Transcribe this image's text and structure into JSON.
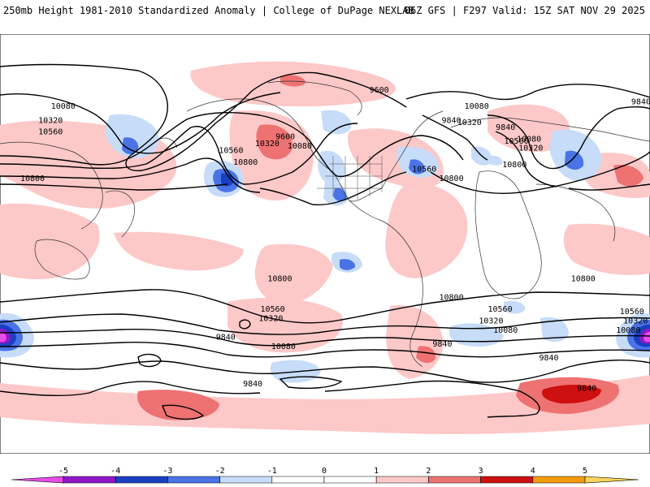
{
  "header": {
    "title": "250mb Height 1981-2010 Standardized Anomaly | College of DuPage NEXLAB",
    "run_info": "06Z GFS | F297 Valid: 15Z SAT NOV 29 2025"
  },
  "legend": {
    "ticks": [
      "-5",
      "-4",
      "-3",
      "-2",
      "-1",
      "0",
      "1",
      "2",
      "3",
      "4",
      "5"
    ],
    "colors": [
      "#e94be9",
      "#8f17c7",
      "#1a3fc2",
      "#4a73e6",
      "#c6dcf8",
      "#ffffff",
      "#ffffff",
      "#fcc8c8",
      "#ee7272",
      "#cd1010",
      "#f59c0c",
      "#f9d45c"
    ]
  },
  "map": {
    "contour_labels": [
      "9600",
      "9840",
      "10080",
      "10320",
      "10560",
      "10800"
    ],
    "label_items": [
      {
        "text": "9600",
        "lat": 66,
        "lon": -150
      },
      {
        "text": "10080",
        "lat": 59,
        "lon": -96
      },
      {
        "text": "9840",
        "lat": 53,
        "lon": -110
      },
      {
        "text": "10320",
        "lat": 52,
        "lon": -100
      },
      {
        "text": "9840",
        "lat": 50,
        "lon": -80
      },
      {
        "text": "9840",
        "lat": 61,
        "lon": -5
      },
      {
        "text": "10080",
        "lat": 59,
        "lon": 35
      },
      {
        "text": "10320",
        "lat": 53,
        "lon": 28
      },
      {
        "text": "10560",
        "lat": 48,
        "lon": 28
      },
      {
        "text": "9600",
        "lat": 46,
        "lon": 158
      },
      {
        "text": "10320",
        "lat": 43,
        "lon": 148
      },
      {
        "text": "10080",
        "lat": 42,
        "lon": 166
      },
      {
        "text": "10560",
        "lat": 40,
        "lon": 128
      },
      {
        "text": "10800",
        "lat": 35,
        "lon": 136
      },
      {
        "text": "10560",
        "lat": 32,
        "lon": -125
      },
      {
        "text": "10800",
        "lat": 28,
        "lon": -110
      },
      {
        "text": "10560",
        "lat": 44,
        "lon": -74
      },
      {
        "text": "10080",
        "lat": 45,
        "lon": -67
      },
      {
        "text": "10320",
        "lat": 41,
        "lon": -66
      },
      {
        "text": "10800",
        "lat": 34,
        "lon": -75
      },
      {
        "text": "10800",
        "lat": 28,
        "lon": 18
      },
      {
        "text": "10800",
        "lat": -15,
        "lon": 155
      },
      {
        "text": "10800",
        "lat": -23,
        "lon": -110
      },
      {
        "text": "10800",
        "lat": -15,
        "lon": -37
      },
      {
        "text": "10560",
        "lat": -28,
        "lon": 151
      },
      {
        "text": "10320",
        "lat": -32,
        "lon": 150
      },
      {
        "text": "10560",
        "lat": -28,
        "lon": -83
      },
      {
        "text": "10320",
        "lat": -33,
        "lon": -88
      },
      {
        "text": "10080",
        "lat": -37,
        "lon": -80
      },
      {
        "text": "10560",
        "lat": -29,
        "lon": -10
      },
      {
        "text": "10320",
        "lat": -33,
        "lon": -8
      },
      {
        "text": "10080",
        "lat": -37,
        "lon": -12
      },
      {
        "text": "9840",
        "lat": -43,
        "lon": -115
      },
      {
        "text": "9840",
        "lat": -40,
        "lon": 125
      },
      {
        "text": "10080",
        "lat": -44,
        "lon": 157
      },
      {
        "text": "9840",
        "lat": -49,
        "lon": -56
      },
      {
        "text": "9840",
        "lat": -60,
        "lon": 140
      },
      {
        "text": "9840",
        "lat": -62,
        "lon": -35
      }
    ]
  }
}
